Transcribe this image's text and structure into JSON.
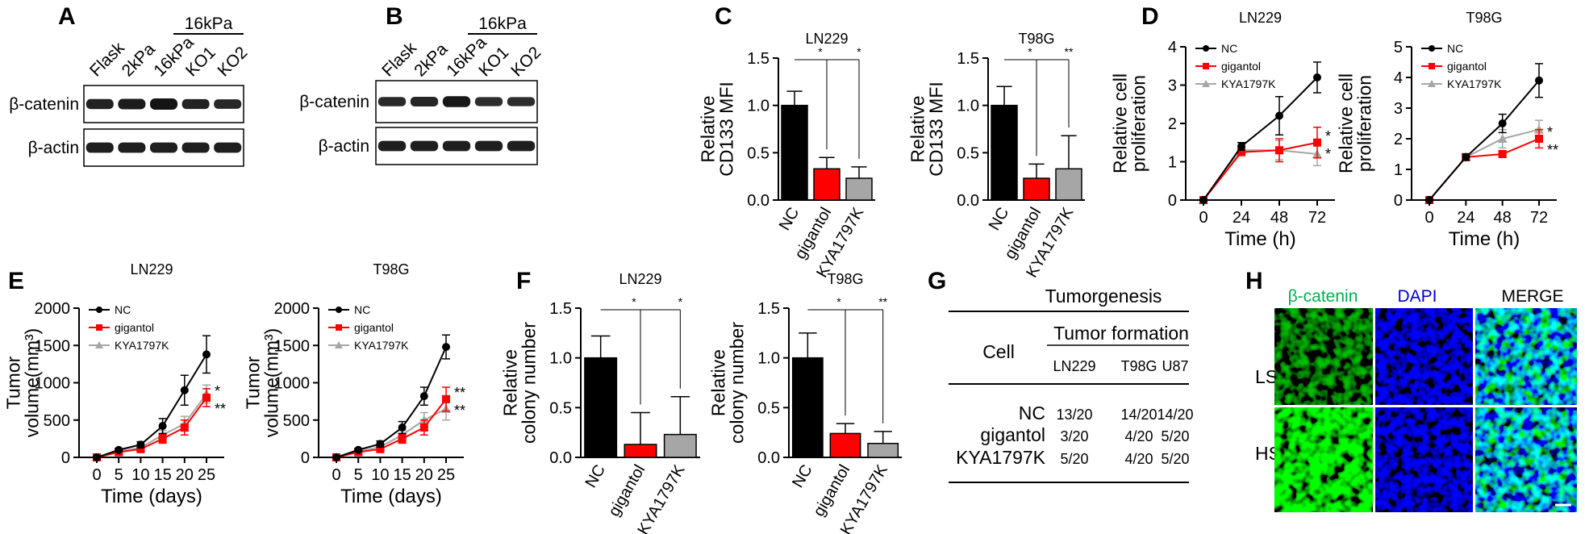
{
  "panel_letters": {
    "A": "A",
    "B": "B",
    "C": "C",
    "D": "D",
    "E": "E",
    "F": "F",
    "G": "G",
    "H": "H"
  },
  "blots": [
    {
      "panel": "A",
      "bracket_label": "16kPa",
      "lanes": [
        "Flask",
        "2kPa",
        "16kPa",
        "KO1",
        "KO2"
      ],
      "rows": [
        {
          "label": "β-catenin",
          "intensity": [
            0.8,
            0.88,
            1.0,
            0.78,
            0.72
          ]
        },
        {
          "label": "β-actin",
          "intensity": [
            0.85,
            0.85,
            0.85,
            0.85,
            0.85
          ]
        }
      ]
    },
    {
      "panel": "B",
      "bracket_label": "16kPa",
      "lanes": [
        "Flask",
        "2kPa",
        "16kPa",
        "KO1",
        "KO2"
      ],
      "rows": [
        {
          "label": "β-catenin",
          "intensity": [
            0.7,
            0.75,
            0.95,
            0.65,
            0.65
          ]
        },
        {
          "label": "β-actin",
          "intensity": [
            0.85,
            0.85,
            0.85,
            0.85,
            0.85
          ]
        }
      ]
    }
  ],
  "chart_data": [
    {
      "id": "C-LN229",
      "type": "bar",
      "title": "LN229",
      "ylabel": "Relative CD133 MFI",
      "categories": [
        "NC",
        "gigantol",
        "KYA1797K"
      ],
      "values": [
        1.0,
        0.33,
        0.23
      ],
      "errors": [
        0.15,
        0.12,
        0.12
      ],
      "ylim": [
        0,
        1.5
      ],
      "yticks": [
        "0.0",
        "0.5",
        "1.0",
        "1.5"
      ],
      "sig": [
        "*",
        "*"
      ],
      "colors": [
        "#000000",
        "#ff0000",
        "#a6a6a6"
      ]
    },
    {
      "id": "C-T98G",
      "type": "bar",
      "title": "T98G",
      "ylabel": "Relative CD133 MFI",
      "categories": [
        "NC",
        "gigantol",
        "KYA1797K"
      ],
      "values": [
        1.0,
        0.23,
        0.33
      ],
      "errors": [
        0.2,
        0.15,
        0.35
      ],
      "ylim": [
        0,
        1.5
      ],
      "yticks": [
        "0.0",
        "0.5",
        "1.0",
        "1.5"
      ],
      "sig": [
        "*",
        "**"
      ],
      "colors": [
        "#000000",
        "#ff0000",
        "#a6a6a6"
      ]
    },
    {
      "id": "D-LN229",
      "type": "line",
      "title": "LN229",
      "xlabel": "Time (h)",
      "ylabel": "Relative cell proliferation",
      "x": [
        0,
        24,
        48,
        72
      ],
      "xticks": [
        "0",
        "24",
        "48",
        "72"
      ],
      "ylim": [
        0,
        4
      ],
      "yticks": [
        "0",
        "1",
        "2",
        "3",
        "4"
      ],
      "legend_position": "top-left",
      "series": [
        {
          "name": "NC",
          "color": "#000000",
          "values": [
            0,
            1.4,
            2.2,
            3.2
          ],
          "errors": [
            0,
            0.1,
            0.5,
            0.4
          ]
        },
        {
          "name": "gigantol",
          "color": "#ff0000",
          "values": [
            0,
            1.25,
            1.3,
            1.5
          ],
          "errors": [
            0,
            0.08,
            0.3,
            0.4
          ]
        },
        {
          "name": "KYA1797K",
          "color": "#a6a6a6",
          "values": [
            0,
            1.3,
            1.3,
            1.2
          ],
          "errors": [
            0,
            0.1,
            0.25,
            0.3
          ]
        }
      ],
      "annotations": [
        "*",
        "*"
      ]
    },
    {
      "id": "D-T98G",
      "type": "line",
      "title": "T98G",
      "xlabel": "Time (h)",
      "ylabel": "Relative cell proliferation",
      "x": [
        0,
        24,
        48,
        72
      ],
      "xticks": [
        "0",
        "24",
        "48",
        "72"
      ],
      "ylim": [
        0,
        5
      ],
      "yticks": [
        "0",
        "1",
        "2",
        "3",
        "4",
        "5"
      ],
      "legend_position": "top-left",
      "series": [
        {
          "name": "NC",
          "color": "#000000",
          "values": [
            0,
            1.4,
            2.5,
            3.9
          ],
          "errors": [
            0,
            0.1,
            0.3,
            0.55
          ]
        },
        {
          "name": "gigantol",
          "color": "#ff0000",
          "values": [
            0,
            1.4,
            1.5,
            2.0
          ],
          "errors": [
            0,
            0.1,
            0.1,
            0.3
          ]
        },
        {
          "name": "KYA1797K",
          "color": "#a6a6a6",
          "values": [
            0,
            1.4,
            2.0,
            2.3
          ],
          "errors": [
            0,
            0.1,
            0.3,
            0.3
          ]
        }
      ],
      "annotations": [
        "*",
        "**"
      ]
    },
    {
      "id": "E-LN229",
      "type": "line",
      "title": "LN229",
      "xlabel": "Time (days)",
      "ylabel": "Tumor volume(mm³)",
      "x": [
        0,
        5,
        10,
        15,
        20,
        25
      ],
      "xticks": [
        "0",
        "5",
        "10",
        "15",
        "20",
        "25"
      ],
      "ylim": [
        0,
        2000
      ],
      "yticks": [
        "0",
        "500",
        "1000",
        "1500",
        "2000"
      ],
      "legend_position": "top-left",
      "series": [
        {
          "name": "NC",
          "color": "#000000",
          "values": [
            0,
            100,
            170,
            420,
            900,
            1380
          ],
          "errors": [
            0,
            20,
            40,
            100,
            200,
            250
          ]
        },
        {
          "name": "gigantol",
          "color": "#ff0000",
          "values": [
            0,
            70,
            110,
            250,
            400,
            800
          ],
          "errors": [
            0,
            15,
            30,
            60,
            100,
            120
          ]
        },
        {
          "name": "KYA1797K",
          "color": "#a6a6a6",
          "values": [
            0,
            80,
            130,
            300,
            450,
            850
          ],
          "errors": [
            0,
            15,
            30,
            60,
            100,
            120
          ]
        }
      ],
      "annotations": [
        "*",
        "**"
      ]
    },
    {
      "id": "E-T98G",
      "type": "line",
      "title": "T98G",
      "xlabel": "Time (days)",
      "ylabel": "Tumor volume(mm³)",
      "x": [
        0,
        5,
        10,
        15,
        20,
        25
      ],
      "xticks": [
        "0",
        "5",
        "10",
        "15",
        "20",
        "25"
      ],
      "ylim": [
        0,
        2000
      ],
      "yticks": [
        "0",
        "500",
        "1000",
        "1500",
        "2000"
      ],
      "legend_position": "top-left",
      "series": [
        {
          "name": "NC",
          "color": "#000000",
          "values": [
            0,
            100,
            180,
            400,
            820,
            1480
          ],
          "errors": [
            0,
            20,
            40,
            80,
            120,
            160
          ]
        },
        {
          "name": "gigantol",
          "color": "#ff0000",
          "values": [
            0,
            70,
            110,
            250,
            400,
            780
          ],
          "errors": [
            0,
            15,
            30,
            60,
            100,
            160
          ]
        },
        {
          "name": "KYA1797K",
          "color": "#a6a6a6",
          "values": [
            0,
            80,
            140,
            300,
            500,
            650
          ],
          "errors": [
            0,
            15,
            30,
            60,
            100,
            150
          ]
        }
      ],
      "annotations": [
        "**",
        "**"
      ]
    },
    {
      "id": "F-LN229",
      "type": "bar",
      "title": "LN229",
      "ylabel": "Relative colony number",
      "categories": [
        "NC",
        "gigantol",
        "KYA1797K"
      ],
      "values": [
        1.0,
        0.13,
        0.23
      ],
      "errors": [
        0.22,
        0.32,
        0.38
      ],
      "ylim": [
        0,
        1.5
      ],
      "yticks": [
        "0.0",
        "0.5",
        "1.0",
        "1.5"
      ],
      "sig": [
        "*",
        "*"
      ],
      "colors": [
        "#000000",
        "#ff0000",
        "#a6a6a6"
      ]
    },
    {
      "id": "F-T98G",
      "type": "bar",
      "title": "T98G",
      "ylabel": "Relative colony number",
      "categories": [
        "NC",
        "gigantol",
        "KYA1797K"
      ],
      "values": [
        1.0,
        0.24,
        0.14
      ],
      "errors": [
        0.25,
        0.1,
        0.12
      ],
      "ylim": [
        0,
        1.5
      ],
      "yticks": [
        "0.0",
        "0.5",
        "1.0",
        "1.5"
      ],
      "sig": [
        "*",
        "**"
      ],
      "colors": [
        "#000000",
        "#ff0000",
        "#a6a6a6"
      ]
    }
  ],
  "table_g": {
    "title": "Tumorgenesis",
    "group_header": "Tumor formation",
    "row_header": "Cell",
    "columns": [
      "LN229",
      "T98G",
      "U87"
    ],
    "rows": [
      {
        "label": "NC",
        "cells": [
          "13/20",
          "14/20",
          "14/20"
        ]
      },
      {
        "label": "gigantol",
        "cells": [
          "3/20",
          "4/20",
          "5/20"
        ]
      },
      {
        "label": "KYA1797K",
        "cells": [
          "5/20",
          "4/20",
          "5/20"
        ]
      }
    ]
  },
  "micro_h": {
    "columns": [
      {
        "label": "β-catenin",
        "color": "#00b050"
      },
      {
        "label": "DAPI",
        "color": "#0000cc"
      },
      {
        "label": "MERGE",
        "color": "#000000"
      }
    ],
    "rows": [
      "LS",
      "HS"
    ]
  }
}
